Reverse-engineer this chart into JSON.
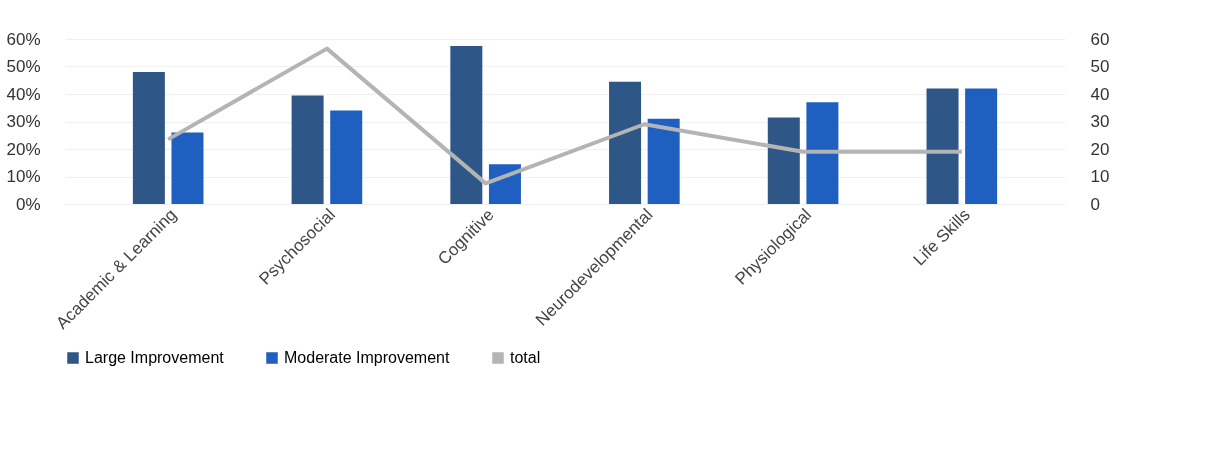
{
  "chart_data": {
    "type": "bar",
    "categories": [
      "Academic & Learning",
      "Psychosocial",
      "Cognitive",
      "Neurodevelopmental",
      "Physiological",
      "Life Skills"
    ],
    "series": [
      {
        "name": "Large Improvement",
        "color": "#2e5687",
        "values": [
          48,
          39.5,
          57.5,
          44.5,
          31.5,
          42
        ]
      },
      {
        "name": "Moderate Improvement",
        "color": "#1f5fc0",
        "values": [
          26,
          34,
          14.5,
          31,
          37,
          42
        ]
      },
      {
        "name": "total",
        "type": "line",
        "axis": "y2",
        "color": "#b4b4b4",
        "values": [
          23.5,
          56.5,
          7.5,
          29,
          19,
          19
        ]
      }
    ],
    "ylim": [
      0,
      60
    ],
    "yticks": [
      {
        "value": 0,
        "label": "0%"
      },
      {
        "value": 10,
        "label": "10%"
      },
      {
        "value": 20,
        "label": "20%"
      },
      {
        "value": 30,
        "label": "30%"
      },
      {
        "value": 40,
        "label": "40%"
      },
      {
        "value": 50,
        "label": "50%"
      },
      {
        "value": 60,
        "label": "60%"
      }
    ],
    "y2lim": [
      0,
      60
    ],
    "y2ticks": [
      0,
      10,
      20,
      30,
      40,
      50,
      60
    ],
    "grid": "y",
    "legend": "bottom",
    "marker": "none"
  }
}
